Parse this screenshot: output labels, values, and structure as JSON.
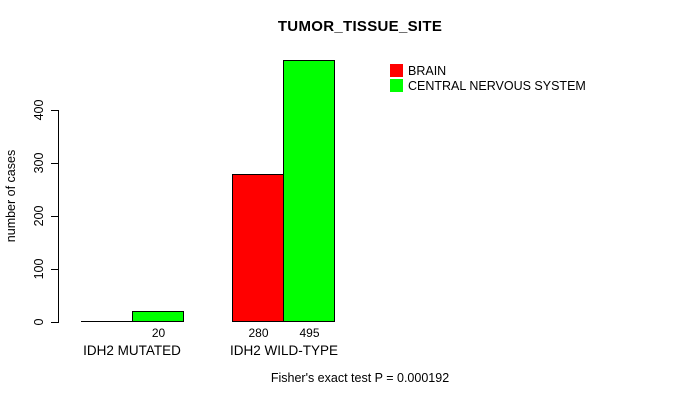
{
  "title": "TUMOR_TISSUE_SITE",
  "footer": "Fisher's exact test P = 0.000192",
  "legend": {
    "items": [
      {
        "label": "BRAIN",
        "color": "#ff0000"
      },
      {
        "label": "CENTRAL NERVOUS SYSTEM",
        "color": "#00ff00"
      }
    ]
  },
  "chart_data": {
    "type": "bar",
    "title": "TUMOR_TISSUE_SITE",
    "xlabel": "",
    "ylabel": "number of cases",
    "categories": [
      "IDH2 MUTATED",
      "IDH2 WILD-TYPE"
    ],
    "series": [
      {
        "name": "BRAIN",
        "color": "#ff0000",
        "values": [
          0,
          280
        ],
        "bar_labels": [
          "",
          "280"
        ]
      },
      {
        "name": "CENTRAL NERVOUS SYSTEM",
        "color": "#00ff00",
        "values": [
          20,
          495
        ],
        "bar_labels": [
          "20",
          "495"
        ]
      }
    ],
    "yticks": [
      0,
      100,
      200,
      300,
      400
    ],
    "ylim": [
      0,
      495
    ],
    "grid": false,
    "legend_position": "top-right",
    "annotation": "Fisher's exact test P = 0.000192"
  }
}
